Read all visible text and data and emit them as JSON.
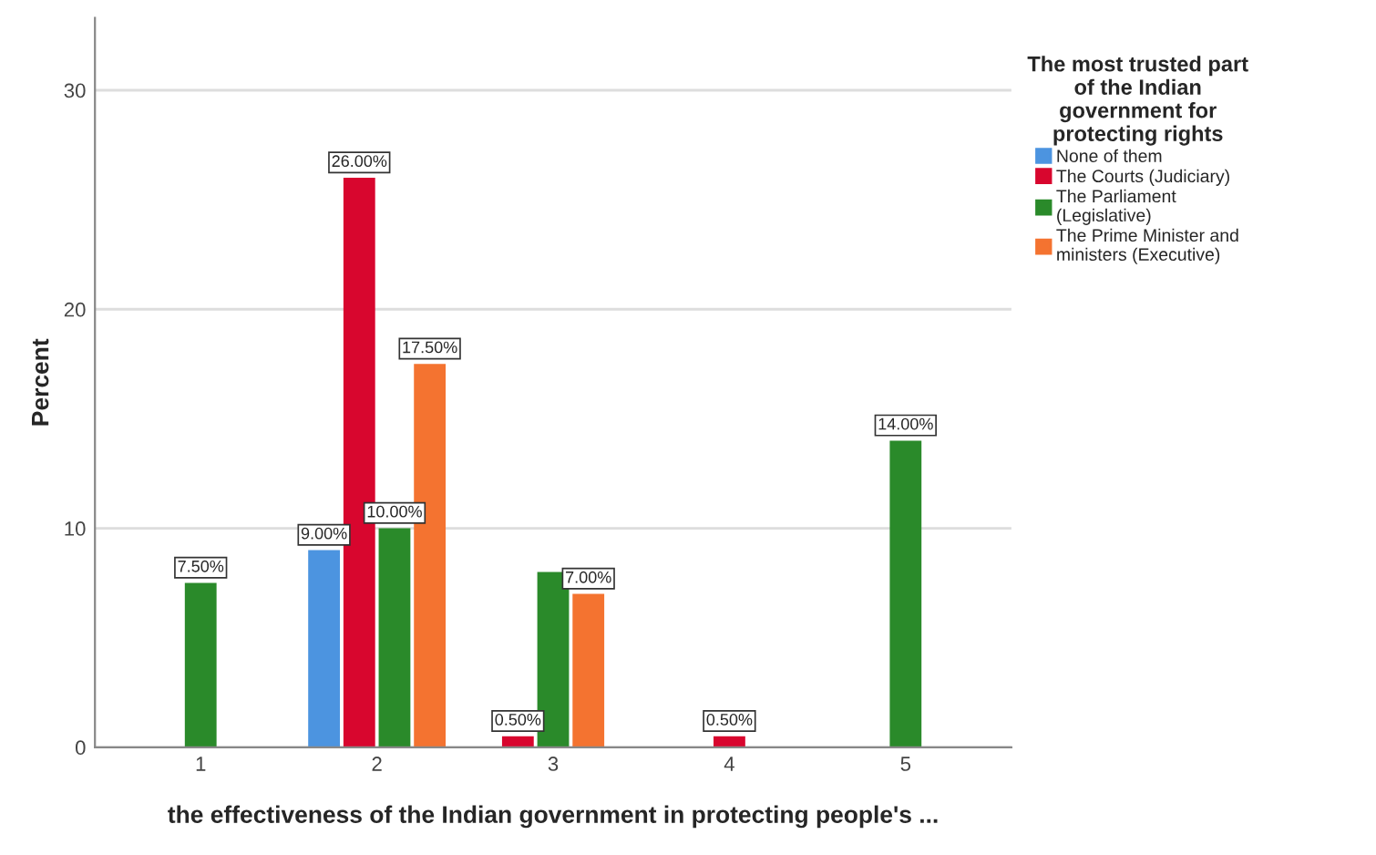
{
  "chart_data": {
    "type": "bar",
    "xlabel": "the effectiveness of the Indian government in protecting people's ...",
    "ylabel": "Percent",
    "legend_title": "The most trusted part of the Indian government for protecting rights",
    "categories": [
      "1",
      "2",
      "3",
      "4",
      "5"
    ],
    "series": [
      {
        "name": "None of them",
        "color": "#4c94e0",
        "values": [
          null,
          9.0,
          null,
          null,
          null
        ],
        "value_labels": [
          null,
          "9.00%",
          null,
          null,
          null
        ]
      },
      {
        "name": "The Courts (Judiciary)",
        "color": "#d8062e",
        "values": [
          null,
          26.0,
          0.5,
          0.5,
          null
        ],
        "value_labels": [
          null,
          "26.00%",
          "0.50%",
          "0.50%",
          null
        ]
      },
      {
        "name": "The Parliament (Legislative)",
        "color": "#2a8a2a",
        "values": [
          7.5,
          10.0,
          8.0,
          null,
          14.0
        ],
        "value_labels": [
          "7.50%",
          "10.00%",
          null,
          null,
          "14.00%"
        ]
      },
      {
        "name": "The Prime Minister and ministers (Executive)",
        "color": "#f47330",
        "values": [
          null,
          17.5,
          7.0,
          null,
          null
        ],
        "value_labels": [
          null,
          "17.50%",
          "7.00%",
          null,
          null
        ]
      }
    ],
    "ylim": [
      0,
      33.3
    ],
    "yticks": [
      0,
      10,
      20,
      30
    ],
    "grid": "y",
    "legend": "right"
  }
}
